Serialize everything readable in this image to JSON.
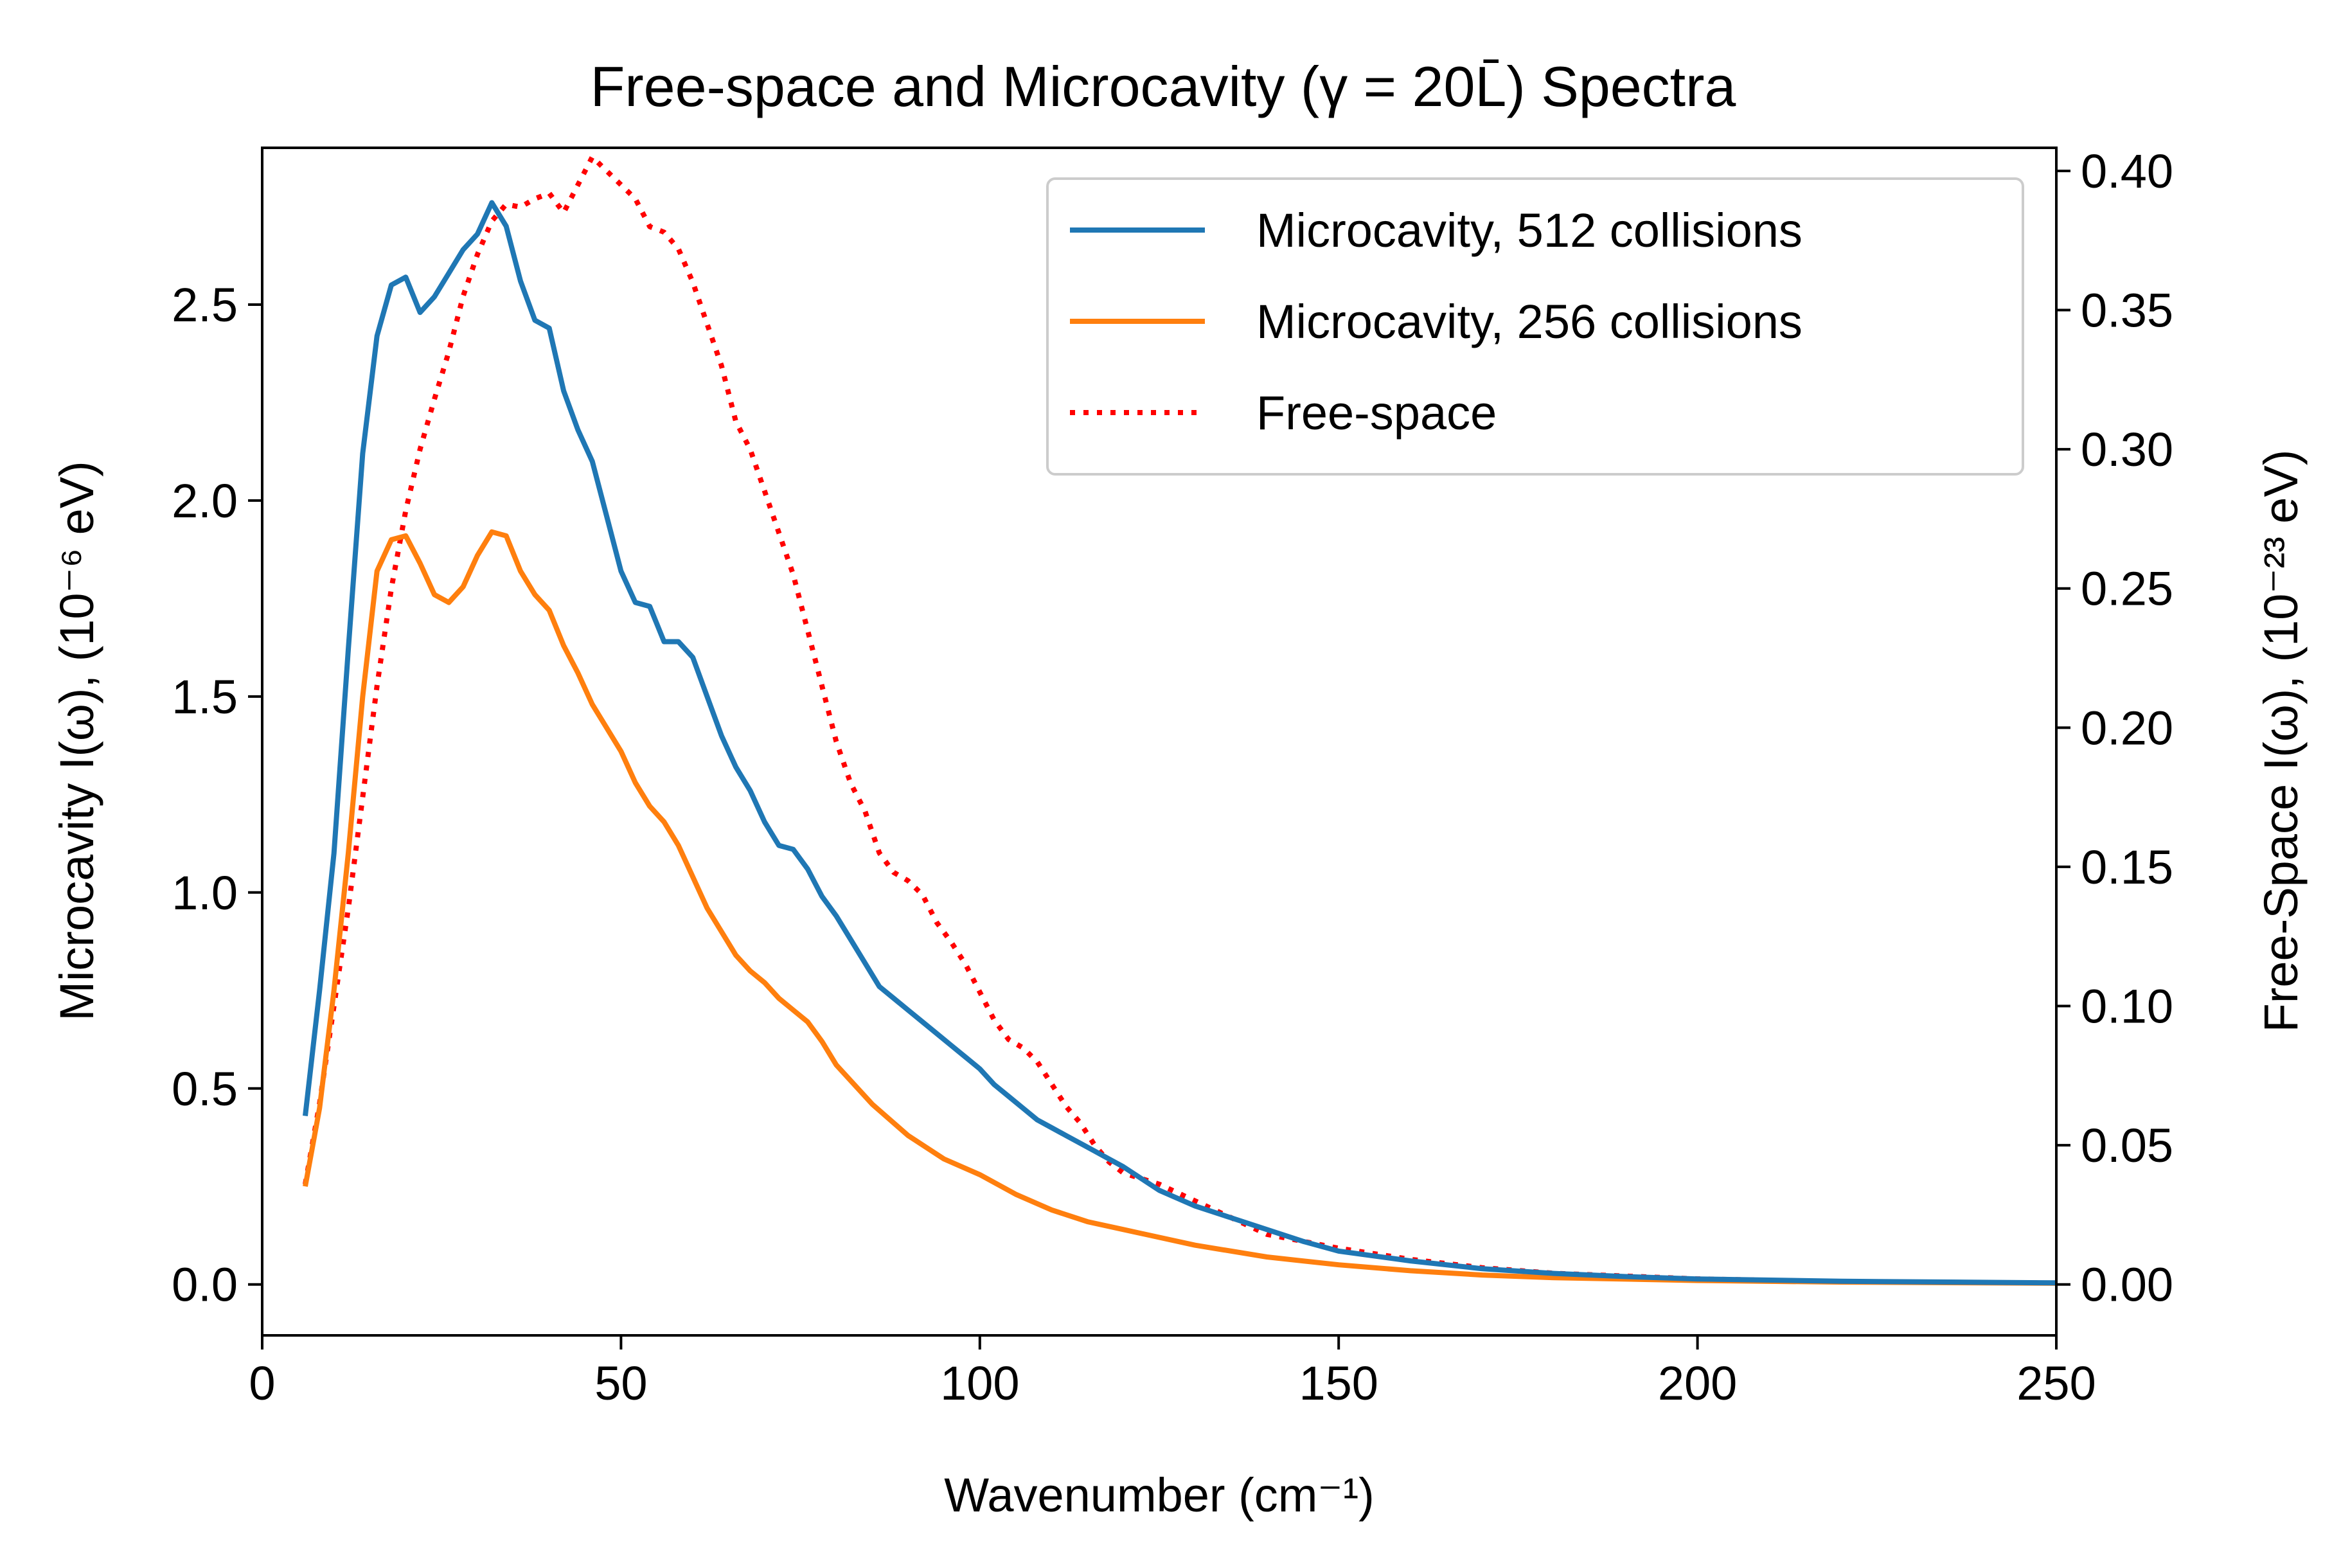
{
  "chart_data": {
    "type": "line",
    "title": "Free-space and Microcavity (γ = 20L̄) Spectra",
    "xlabel": "Wavenumber (cm⁻¹)",
    "ylabel_left": "Microcavity I(ω), (10⁻⁶ eV)",
    "ylabel_right": "Free-Space I(ω), (10⁻²³ eV)",
    "xlim": [
      0,
      250
    ],
    "ylim_left": [
      -0.13,
      2.9
    ],
    "ylim_right": [
      -0.0183,
      0.4083
    ],
    "xticks": [
      "0",
      "50",
      "100",
      "150",
      "200",
      "250"
    ],
    "yticks_left": [
      "0.0",
      "0.5",
      "1.0",
      "1.5",
      "2.0",
      "2.5"
    ],
    "yticks_right": [
      "0.00",
      "0.05",
      "0.10",
      "0.15",
      "0.20",
      "0.25",
      "0.30",
      "0.35",
      "0.40"
    ],
    "grid": false,
    "legend_position": "upper right",
    "series": [
      {
        "name": "Microcavity, 512 collisions",
        "axis": "left",
        "color": "#1f77b4",
        "style": "solid",
        "x": [
          6,
          8,
          10,
          12,
          14,
          16,
          18,
          20,
          22,
          24,
          26,
          28,
          30,
          32,
          34,
          36,
          38,
          40,
          42,
          44,
          46,
          48,
          50,
          52,
          54,
          56,
          58,
          60,
          62,
          64,
          66,
          68,
          70,
          72,
          74,
          76,
          78,
          80,
          82,
          84,
          86,
          88,
          90,
          92,
          94,
          96,
          98,
          100,
          102,
          104,
          106,
          108,
          110,
          112,
          114,
          116,
          118,
          120,
          125,
          130,
          135,
          140,
          145,
          150,
          160,
          170,
          180,
          190,
          200,
          220,
          250
        ],
        "y": [
          0.43,
          0.75,
          1.1,
          1.62,
          2.12,
          2.42,
          2.55,
          2.57,
          2.48,
          2.52,
          2.58,
          2.64,
          2.68,
          2.76,
          2.7,
          2.56,
          2.46,
          2.44,
          2.28,
          2.18,
          2.1,
          1.96,
          1.82,
          1.74,
          1.73,
          1.64,
          1.64,
          1.6,
          1.5,
          1.4,
          1.32,
          1.26,
          1.18,
          1.12,
          1.11,
          1.06,
          0.99,
          0.94,
          0.88,
          0.82,
          0.76,
          0.73,
          0.7,
          0.67,
          0.64,
          0.61,
          0.58,
          0.55,
          0.51,
          0.48,
          0.45,
          0.42,
          0.4,
          0.38,
          0.36,
          0.34,
          0.32,
          0.3,
          0.24,
          0.2,
          0.17,
          0.14,
          0.11,
          0.085,
          0.06,
          0.04,
          0.028,
          0.02,
          0.014,
          0.008,
          0.004
        ]
      },
      {
        "name": "Microcavity, 256 collisions",
        "axis": "left",
        "color": "#ff7f0e",
        "style": "solid",
        "x": [
          6,
          8,
          10,
          12,
          14,
          16,
          18,
          20,
          22,
          24,
          26,
          28,
          30,
          32,
          34,
          36,
          38,
          40,
          42,
          44,
          46,
          48,
          50,
          52,
          54,
          56,
          58,
          60,
          62,
          64,
          66,
          68,
          70,
          72,
          74,
          76,
          78,
          80,
          85,
          90,
          95,
          100,
          105,
          110,
          115,
          120,
          125,
          130,
          140,
          150,
          160,
          170,
          180,
          200,
          220,
          250
        ],
        "y": [
          0.25,
          0.45,
          0.75,
          1.1,
          1.5,
          1.82,
          1.9,
          1.91,
          1.84,
          1.76,
          1.74,
          1.78,
          1.86,
          1.92,
          1.91,
          1.82,
          1.76,
          1.72,
          1.63,
          1.56,
          1.48,
          1.42,
          1.36,
          1.28,
          1.22,
          1.18,
          1.12,
          1.04,
          0.96,
          0.9,
          0.84,
          0.8,
          0.77,
          0.73,
          0.7,
          0.67,
          0.62,
          0.56,
          0.46,
          0.38,
          0.32,
          0.28,
          0.23,
          0.19,
          0.16,
          0.14,
          0.12,
          0.1,
          0.07,
          0.05,
          0.035,
          0.024,
          0.017,
          0.01,
          0.006,
          0.003
        ]
      },
      {
        "name": "Free-space",
        "axis": "right",
        "color": "#ff0000",
        "style": "dotted",
        "x": [
          6,
          8,
          10,
          12,
          14,
          16,
          18,
          20,
          22,
          24,
          26,
          28,
          30,
          32,
          34,
          36,
          38,
          40,
          42,
          44,
          46,
          48,
          50,
          52,
          54,
          56,
          58,
          60,
          62,
          64,
          66,
          68,
          70,
          72,
          74,
          76,
          78,
          80,
          82,
          84,
          86,
          88,
          90,
          92,
          94,
          96,
          98,
          100,
          102,
          104,
          106,
          108,
          110,
          112,
          114,
          116,
          118,
          120,
          125,
          130,
          135,
          140,
          150,
          160,
          170,
          180,
          190,
          200,
          220,
          250
        ],
        "y": [
          0.036,
          0.065,
          0.1,
          0.135,
          0.175,
          0.215,
          0.25,
          0.278,
          0.3,
          0.318,
          0.335,
          0.355,
          0.37,
          0.382,
          0.388,
          0.387,
          0.39,
          0.392,
          0.385,
          0.395,
          0.405,
          0.4,
          0.395,
          0.39,
          0.38,
          0.378,
          0.372,
          0.36,
          0.345,
          0.33,
          0.31,
          0.3,
          0.285,
          0.27,
          0.255,
          0.235,
          0.215,
          0.195,
          0.18,
          0.17,
          0.155,
          0.148,
          0.145,
          0.14,
          0.13,
          0.123,
          0.115,
          0.105,
          0.095,
          0.088,
          0.085,
          0.08,
          0.072,
          0.064,
          0.058,
          0.05,
          0.044,
          0.04,
          0.036,
          0.03,
          0.024,
          0.018,
          0.013,
          0.009,
          0.006,
          0.004,
          0.003,
          0.002,
          0.001,
          0.0005
        ]
      }
    ]
  }
}
